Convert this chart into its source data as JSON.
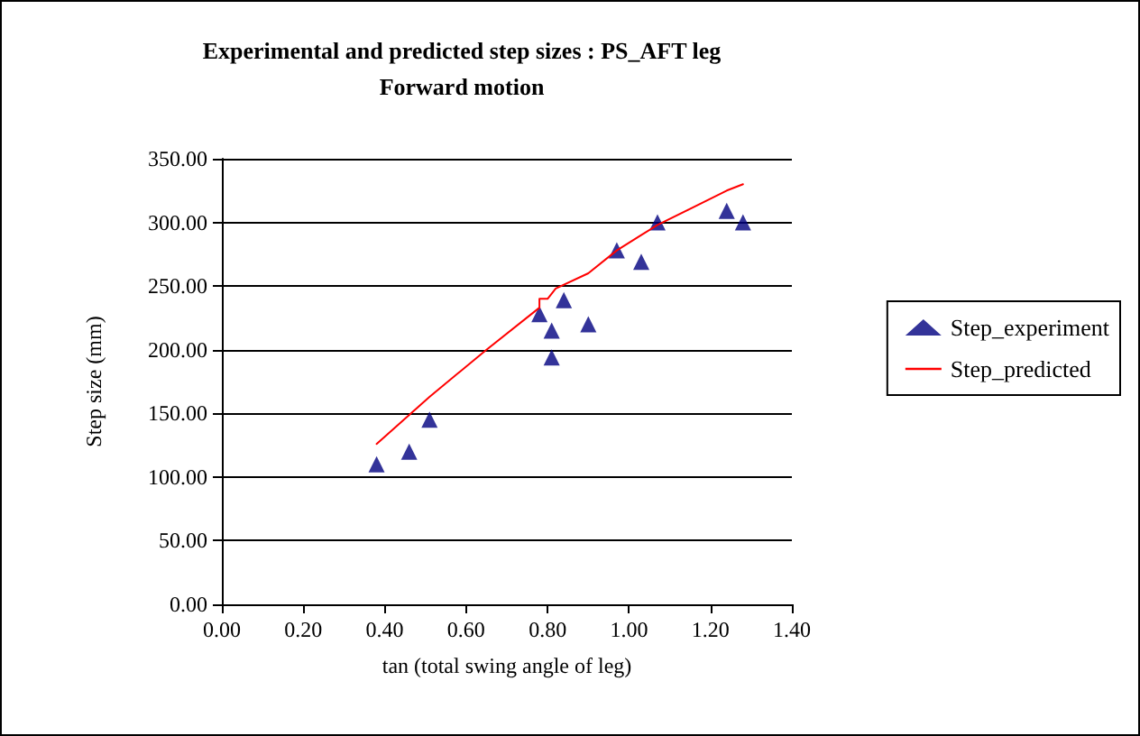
{
  "chart_data": {
    "type": "scatter",
    "title": "Experimental and predicted step sizes : PS_AFT leg\nForward motion",
    "xlabel": "tan (total swing angle of leg)",
    "ylabel": "Step size (mm)",
    "xlim": [
      0,
      1.4
    ],
    "xticks": [
      {
        "value": 0,
        "label": "0.00"
      },
      {
        "value": 0.2,
        "label": "0.20"
      },
      {
        "value": 0.4,
        "label": "0.40"
      },
      {
        "value": 0.6,
        "label": "0.60"
      },
      {
        "value": 0.8,
        "label": "0.80"
      },
      {
        "value": 1,
        "label": "1.00"
      },
      {
        "value": 1.2,
        "label": "1.20"
      },
      {
        "value": 1.4,
        "label": "1.40"
      }
    ],
    "ylim": [
      0,
      350
    ],
    "yticks": [
      {
        "value": 0,
        "label": "0.00"
      },
      {
        "value": 50,
        "label": "50.00"
      },
      {
        "value": 100,
        "label": "100.00"
      },
      {
        "value": 150,
        "label": "150.00"
      },
      {
        "value": 200,
        "label": "200.00"
      },
      {
        "value": 250,
        "label": "250.00"
      },
      {
        "value": 300,
        "label": "300.00"
      },
      {
        "value": 350,
        "label": "350.00"
      }
    ],
    "grid": "y",
    "legend": "right",
    "series": [
      {
        "name": "Step_experiment",
        "marker": "triangle",
        "color": "#000080",
        "x": [
          0.38,
          0.46,
          0.51,
          0.78,
          0.81,
          0.81,
          0.84,
          0.9,
          0.97,
          1.03,
          1.07,
          1.24,
          1.28
        ],
        "values": [
          110,
          120,
          145,
          228,
          215,
          194,
          239,
          220,
          278,
          269,
          300,
          309,
          300
        ]
      },
      {
        "name": "Step_predicted",
        "type": "line",
        "marker": "none",
        "color": "#ff0000",
        "x": [
          0.38,
          0.51,
          0.65,
          0.78,
          0.78,
          0.8,
          0.82,
          0.9,
          0.97,
          1.03,
          1.07,
          1.24,
          1.28
        ],
        "values": [
          126,
          163,
          200,
          233,
          240,
          240,
          248,
          260,
          278,
          290,
          298,
          325,
          330
        ]
      }
    ]
  }
}
